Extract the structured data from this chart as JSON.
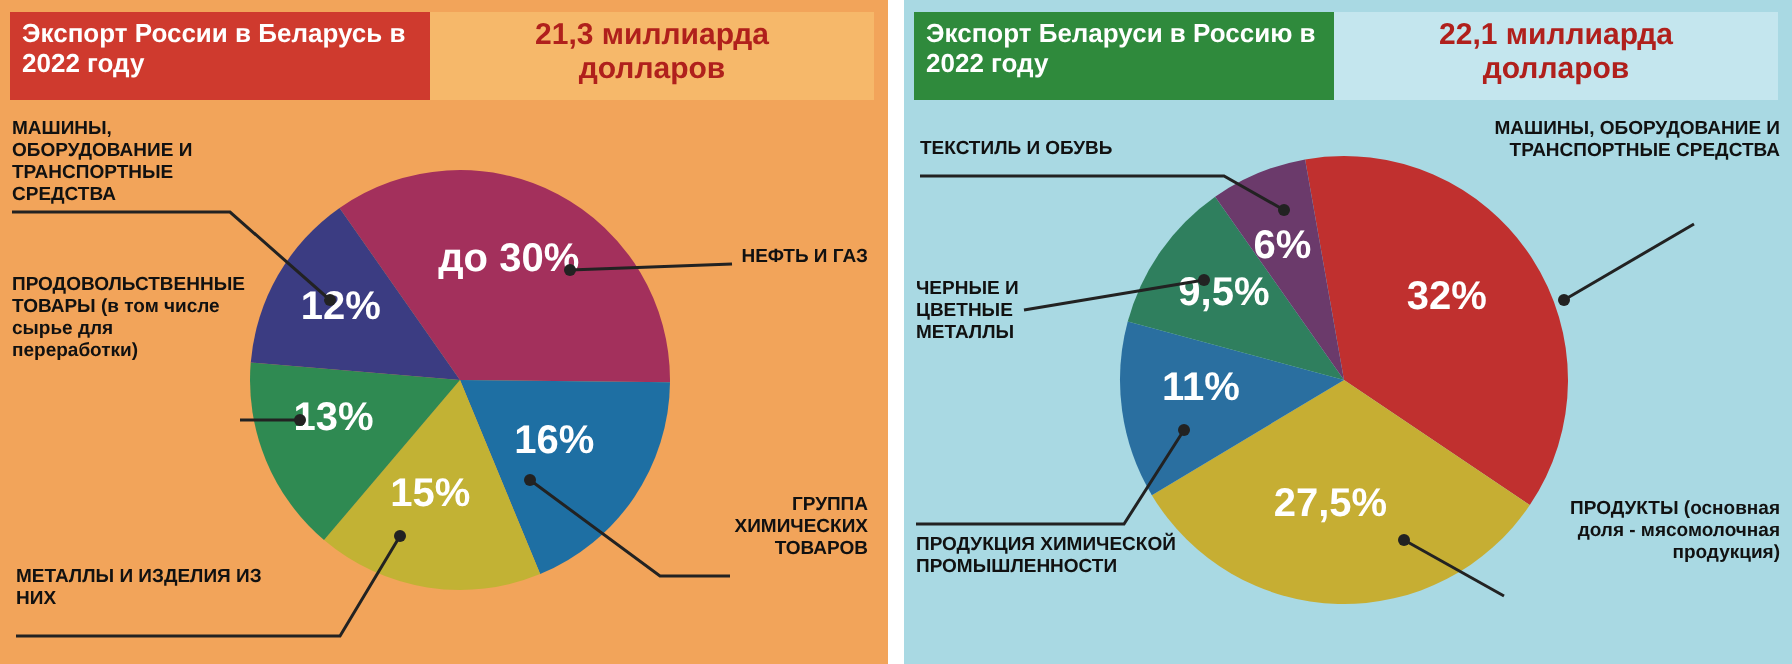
{
  "chart_data": [
    {
      "type": "pie",
      "title": "Экспорт России в Беларусь в 2022 году",
      "subtitle": "21,3 миллиарда долларов",
      "categories": [
        "НЕФТЬ И ГАЗ",
        "ГРУППА ХИМИЧЕСКИХ ТОВАРОВ",
        "МЕТАЛЛЫ И ИЗДЕЛИЯ ИЗ НИХ",
        "ПРОДОВОЛЬСТВЕННЫЕ ТОВАРЫ (в том числе сырье для переработки)",
        "МАШИНЫ, ОБОРУДОВАНИЕ И ТРАНСПОРТНЫЕ СРЕДСТВА"
      ],
      "values": [
        30,
        16,
        15,
        13,
        12
      ],
      "value_labels": [
        "до 30%",
        "16%",
        "15%",
        "13%",
        "12%"
      ],
      "colors": [
        "#a3305c",
        "#1e6fa3",
        "#c2b234",
        "#2f8a52",
        "#3b3c82"
      ]
    },
    {
      "type": "pie",
      "title": "Экспорт Беларуси в Россию в 2022 году",
      "subtitle": "22,1 миллиарда долларов",
      "categories": [
        "МАШИНЫ, ОБОРУДОВАНИЕ И ТРАНСПОРТНЫЕ СРЕДСТВА",
        "ПРОДУКТЫ (основная доля - мясомолочная продукция)",
        "ПРОДУКЦИЯ ХИМИЧЕСКОЙ ПРОМЫШЛЕННОСТИ",
        "ЧЕРНЫЕ И ЦВЕТНЫЕ МЕТАЛЛЫ",
        "ТЕКСТИЛЬ И ОБУВЬ"
      ],
      "values": [
        32,
        27.5,
        11,
        9.5,
        6
      ],
      "value_labels": [
        "32%",
        "27,5%",
        "11%",
        "9,5%",
        "6%"
      ],
      "colors": [
        "#c0302f",
        "#c6ae33",
        "#2a6fa0",
        "#2f7f5e",
        "#6b3a6b"
      ]
    }
  ]
}
